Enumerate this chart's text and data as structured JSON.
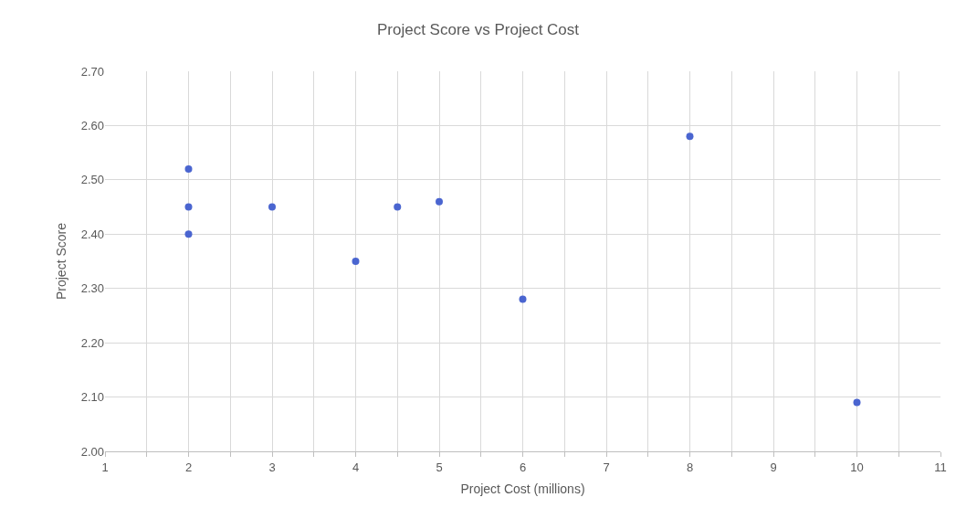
{
  "chart_data": {
    "type": "scatter",
    "title": "Project Score vs Project Cost",
    "xlabel": "Project Cost (millions)",
    "ylabel": "Project Score",
    "x": [
      2,
      2,
      2,
      3,
      4,
      4.5,
      5,
      6,
      8,
      10
    ],
    "values": [
      2.52,
      2.45,
      2.4,
      2.45,
      2.35,
      2.45,
      2.46,
      2.28,
      2.58,
      2.09
    ],
    "color": "#4a65d0",
    "marker": "circle",
    "xlim": [
      1,
      11
    ],
    "xticks": [
      1,
      {
        "value": 1.5,
        "label": null
      },
      2,
      {
        "value": 2.5,
        "label": null
      },
      3,
      {
        "value": 3.5,
        "label": null
      },
      4,
      {
        "value": 4.5,
        "label": null
      },
      5,
      {
        "value": 5.5,
        "label": null
      },
      6,
      {
        "value": 6.5,
        "label": null
      },
      7,
      {
        "value": 7.5,
        "label": null
      },
      8,
      {
        "value": 8.5,
        "label": null
      },
      9,
      {
        "value": 9.5,
        "label": null
      },
      10,
      {
        "value": 10.5,
        "label": null
      },
      11
    ],
    "ylim": [
      2.0,
      2.7
    ],
    "yticks": [
      {
        "value": 2.0,
        "label": "2.00"
      },
      {
        "value": 2.1,
        "label": "2.10"
      },
      {
        "value": 2.2,
        "label": "2.20"
      },
      {
        "value": 2.3,
        "label": "2.30"
      },
      {
        "value": 2.4,
        "label": "2.40"
      },
      {
        "value": 2.5,
        "label": "2.50"
      },
      {
        "value": 2.6,
        "label": "2.60"
      },
      {
        "value": 2.7,
        "label": "2.70"
      }
    ],
    "grid": true
  }
}
